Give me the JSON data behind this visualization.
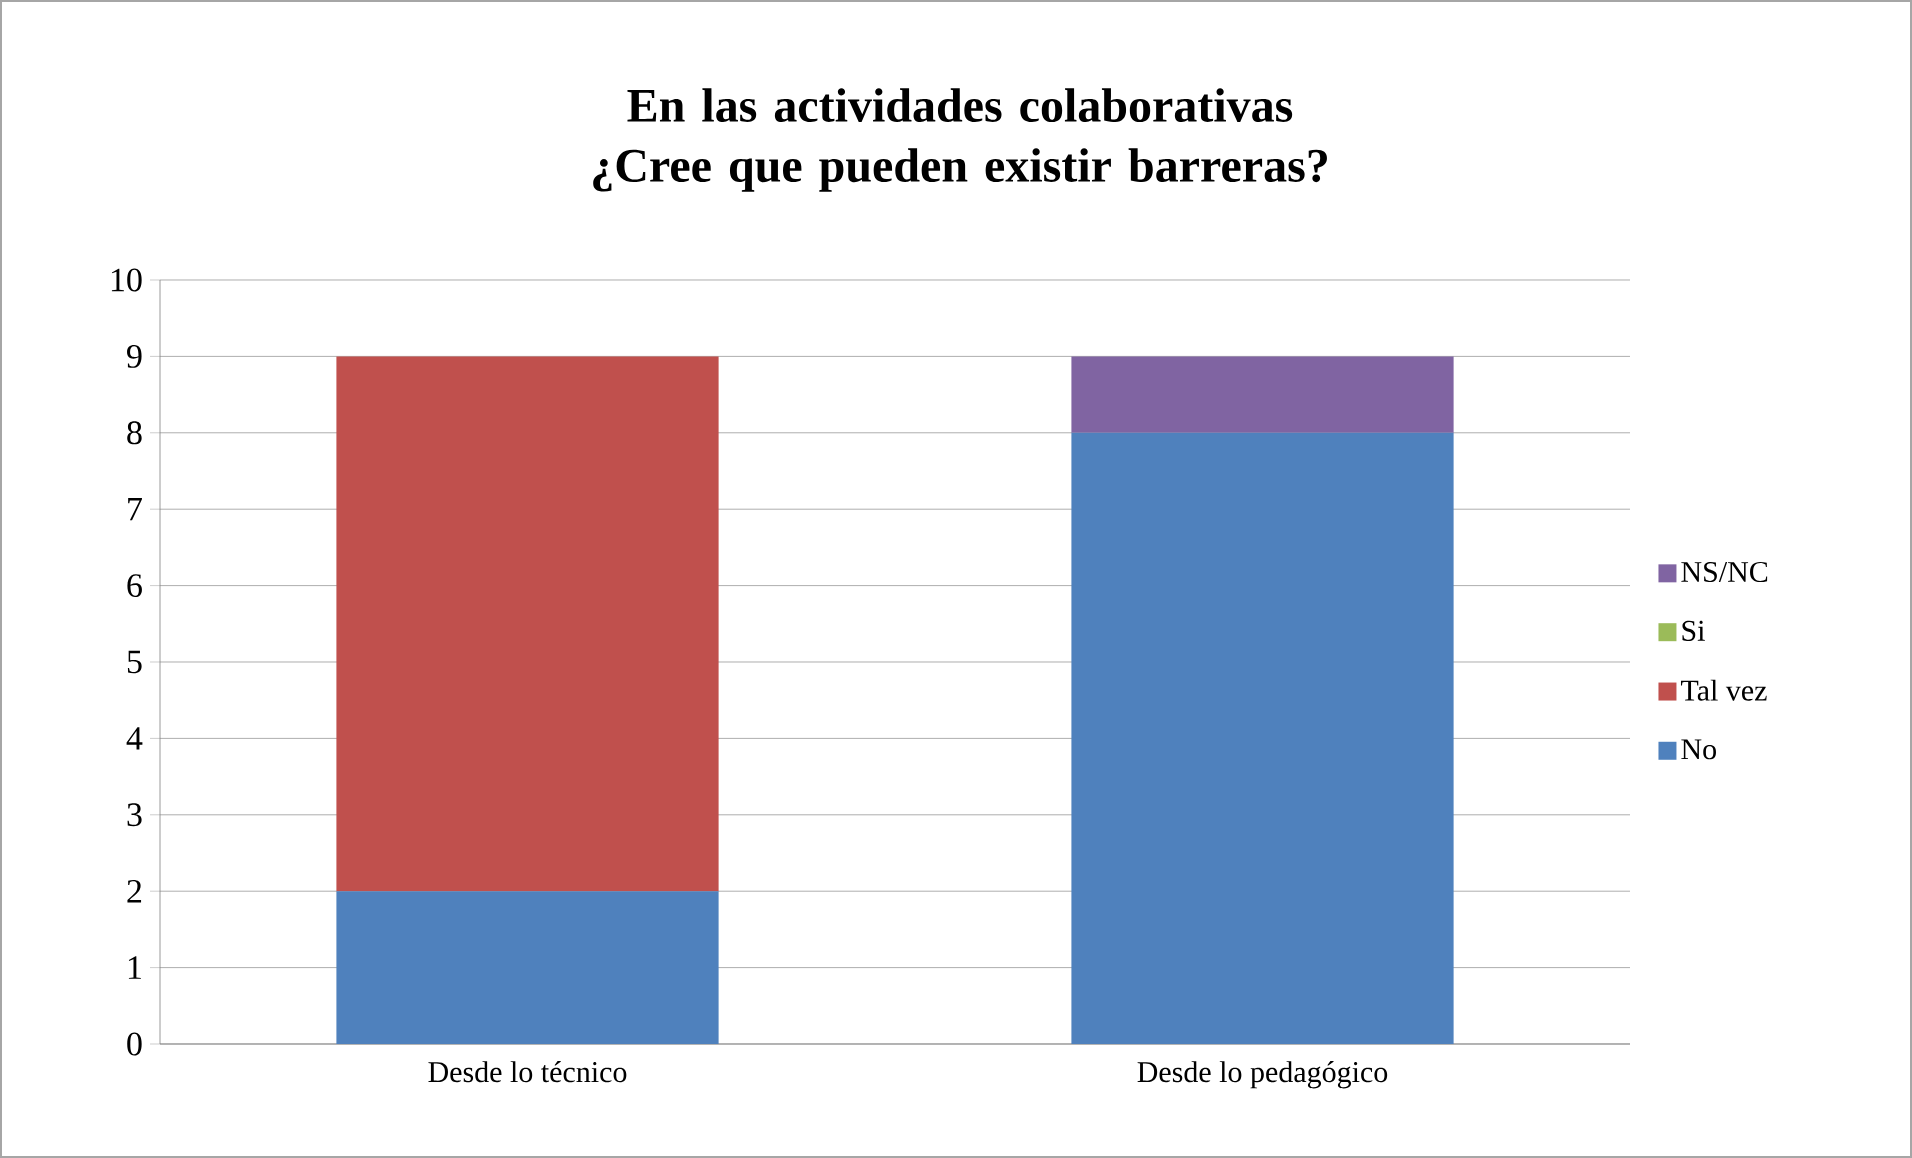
{
  "chart_data": {
    "type": "bar",
    "stacked": true,
    "title": "En las actividades colaborativas ¿Cree que pueden existir barreras?",
    "categories": [
      "Desde lo técnico",
      "Desde lo pedagógico"
    ],
    "series": [
      {
        "name": "No",
        "color": "#4f81bd",
        "values": [
          2,
          8
        ]
      },
      {
        "name": "Tal vez",
        "color": "#c0504d",
        "values": [
          7,
          0
        ]
      },
      {
        "name": "Si",
        "color": "#9bbb59",
        "values": [
          0,
          0
        ]
      },
      {
        "name": "NS/NC",
        "color": "#8064a2",
        "values": [
          0,
          1
        ]
      }
    ],
    "ylim": [
      0,
      10
    ],
    "yticks": [
      0,
      1,
      2,
      3,
      4,
      5,
      6,
      7,
      8,
      9,
      10
    ],
    "grid": "y",
    "legend": "right"
  }
}
